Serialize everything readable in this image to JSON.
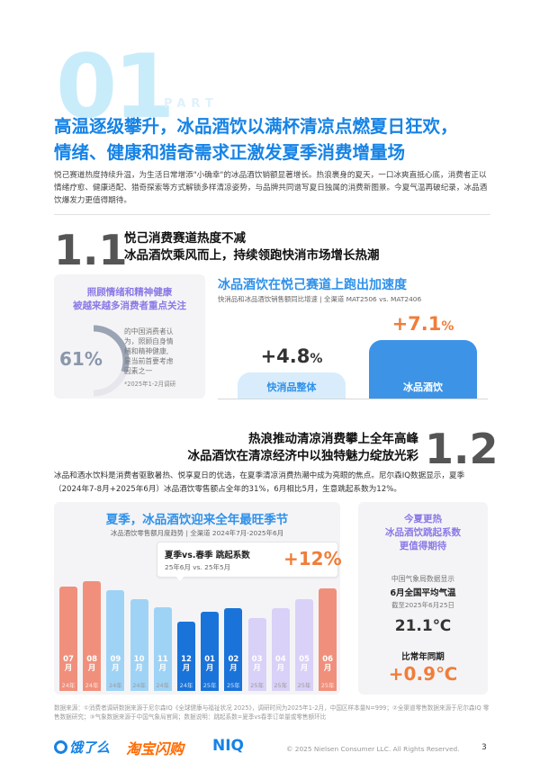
{
  "hero": {
    "number": "01",
    "part": "PART"
  },
  "headline": {
    "line1": "高温逐级攀升，冰品酒饮以满杯清凉点燃夏日狂欢，",
    "line2": "情绪、健康和猎奇需求正激发夏季消费增量场"
  },
  "intro": "悦己赛道热度持续升温，为生活日常增添\"小确幸\"的冰品酒饮销额显著增长。热浪裹身的夏天，一口冰爽直抵心底，消费者正以情绪疗愈、健康适配、猎奇探索等方式解锁多样清凉姿势，与品牌共同谱写夏日独属的消费新图景。今夏气温再破纪录，冰品酒饮爆发力更值得期待。",
  "section11": {
    "number": "1.1",
    "title_line1": "悦己消费赛道热度不减",
    "title_line2": "冰品酒饮乘风而上，持续领跑快消市场增长热潮",
    "left_panel": {
      "title_line1": "照顾情绪和精神健康",
      "title_line2": "被越来越多消费者重点关注",
      "percent": "61%",
      "percent_value": 0.61,
      "desc_lines": [
        "的中国消费者认",
        "为，照顾自身情",
        "绪和精神健康,",
        "是当前首要考虑",
        "因素之一"
      ],
      "note": "*2025年1-2月调研"
    },
    "right": {
      "title": "冰品酒饮在悦己赛道上跑出加速度",
      "caption": "快消品和冰品酒饮销售额同比增速 | 全渠道 MAT2506 vs. MAT2406",
      "bars": [
        {
          "label": "快消品整体",
          "value": "+4.8",
          "unit": "%",
          "numeric": 4.8,
          "color": "#d8ecfb",
          "text_color": "#2f91ea",
          "value_color": "#333333"
        },
        {
          "label": "冰品酒饮",
          "value": "+7.1",
          "unit": "%",
          "numeric": 7.1,
          "color": "#3d94e6",
          "text_color": "#ffffff",
          "value_color": "#f07d3a"
        }
      ]
    }
  },
  "section12": {
    "number": "1.2",
    "title_line1": "热浪推动清凉消费攀上全年高峰",
    "title_line2": "冰品酒饮在清凉经济中以独特魅力绽放光彩",
    "body": "冰品和酒水饮料是消费者驱散暑热、悦享夏日的优选，在夏季清凉消费热潮中成为亮眼的焦点。尼尔森IQ数据显示，夏季（2024年7-8月+2025年6月）冰品酒饮零售额占全年的31%，6月相比5月，生意跳起系数为12%。",
    "chart_title": "夏季，冰品酒饮迎来全年最旺季节",
    "chart_caption": "冰品酒饮零售额月度趋势 | 全渠道 2024年7月-2025年6月",
    "callout": {
      "title": "夏季vs.春季 跳起系数",
      "subtitle": "25年6月 vs. 25年5月",
      "value": "+12%"
    },
    "right_panel": {
      "title_line1": "今夏更热",
      "title_line2": "冰品酒饮跳起系数",
      "title_line3": "更值得期待",
      "source": "中国气象局数据显示",
      "metric_title": "6月全国平均气温",
      "date": "截至2025年6月25日",
      "temp": "21.1℃",
      "compare_label": "比常年同期",
      "compare_value": "+0.9℃"
    }
  },
  "chart_data": {
    "type": "bar",
    "title": "夏季，冰品酒饮迎来全年最旺季节",
    "subtitle": "冰品酒饮零售额月度趋势 | 全渠道 2024年7月-2025年6月",
    "categories": [
      "07月",
      "08月",
      "09月",
      "10月",
      "11月",
      "12月",
      "01月",
      "02月",
      "03月",
      "04月",
      "05月",
      "06月"
    ],
    "months": [
      "07",
      "08",
      "09",
      "10",
      "11",
      "12",
      "01",
      "02",
      "03",
      "04",
      "05",
      "06"
    ],
    "years": [
      "24年",
      "24年",
      "24年",
      "24年",
      "24年",
      "24年",
      "25年",
      "25年",
      "25年",
      "25年",
      "25年",
      "25年"
    ],
    "values": [
      100,
      105,
      96,
      88,
      80,
      66,
      76,
      79,
      70,
      79,
      88,
      98
    ],
    "colors": [
      "#f0907c",
      "#f0907c",
      "#9fd3f5",
      "#9fd3f5",
      "#9fd3f5",
      "#1a73d9",
      "#1a73d9",
      "#1a73d9",
      "#d9d1f7",
      "#d9d1f7",
      "#d9d1f7",
      "#f0907c"
    ],
    "ylim": [
      0,
      110
    ]
  },
  "footer": {
    "source": "数据来源：①消费者调研数据来源于尼尔森IQ《全球健康与福祉状况 2025》，调研时间为2025年1-2月，中国区样本量N=999；②全渠道零售数据来源于尼尔森IQ 零售数据研究；③气象数据来源于中国气象局官网；数据说明：跳起系数=夏季vs春季订单量或零售额环比",
    "logos": [
      "饿了么",
      "淘宝闪购",
      "NIQ"
    ],
    "copyright": "© 2025 Nielsen Consumer LLC. All Rights Reserved.",
    "page": "3"
  }
}
